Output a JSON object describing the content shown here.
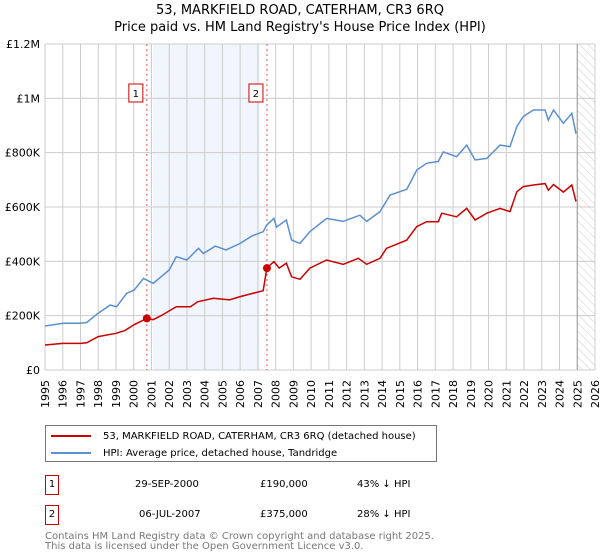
{
  "chart_data": {
    "type": "line",
    "title": "53, MARKFIELD ROAD, CATERHAM, CR3 6RQ",
    "subtitle": "Price paid vs. HM Land Registry's House Price Index (HPI)",
    "xlim": [
      1995,
      2026
    ],
    "ylim": [
      0,
      1200000
    ],
    "x_ticks": [
      "1995",
      "1996",
      "1997",
      "1998",
      "1999",
      "2000",
      "2001",
      "2002",
      "2003",
      "2004",
      "2005",
      "2006",
      "2007",
      "2008",
      "2009",
      "2010",
      "2011",
      "2012",
      "2013",
      "2014",
      "2015",
      "2016",
      "2017",
      "2018",
      "2019",
      "2020",
      "2021",
      "2022",
      "2023",
      "2024",
      "2025",
      "2026"
    ],
    "y_ticks": [
      {
        "v": 0,
        "label": "£0"
      },
      {
        "v": 200000,
        "label": "£200K"
      },
      {
        "v": 400000,
        "label": "£400K"
      },
      {
        "v": 600000,
        "label": "£600K"
      },
      {
        "v": 800000,
        "label": "£800K"
      },
      {
        "v": 1000000,
        "label": "£1M"
      },
      {
        "v": 1200000,
        "label": "£1.2M"
      }
    ],
    "grid": true,
    "shaded_range": [
      2001.1,
      2007.1
    ],
    "forecast_hatch_from": 2025.0,
    "series": [
      {
        "name": "53, MARKFIELD ROAD, CATERHAM, CR3 6RQ (detached house)",
        "color": "#cc0000",
        "x": [
          1995.0,
          1996.0,
          1997.0,
          1997.35,
          1998.0,
          1999.0,
          1999.5,
          2000.0,
          2000.74,
          2001.1,
          2001.6,
          2002.4,
          2003.2,
          2003.6,
          2004.5,
          2005.4,
          2006.0,
          2006.7,
          2007.3,
          2007.5,
          2007.9,
          2008.2,
          2008.6,
          2008.9,
          2009.37,
          2009.93,
          2010.87,
          2011.81,
          2012.66,
          2013.13,
          2013.88,
          2014.25,
          2015.39,
          2015.95,
          2016.51,
          2017.17,
          2017.36,
          2018.2,
          2018.77,
          2019.24,
          2019.9,
          2020.65,
          2021.21,
          2021.59,
          2021.96,
          2022.53,
          2023.19,
          2023.37,
          2023.66,
          2024.22,
          2024.69,
          2024.93
        ],
        "y": [
          92000,
          98000,
          98000,
          100000,
          123000,
          135000,
          145000,
          166000,
          190000,
          185000,
          202000,
          233000,
          233000,
          251000,
          264000,
          258000,
          270000,
          282000,
          292000,
          375000,
          399000,
          375000,
          393000,
          343000,
          334000,
          375000,
          405000,
          389000,
          411000,
          389000,
          411000,
          448000,
          478000,
          528000,
          546000,
          546000,
          577000,
          564000,
          595000,
          552000,
          577000,
          595000,
          583000,
          656000,
          675000,
          681000,
          686000,
          662000,
          683000,
          655000,
          681000,
          620000
        ]
      },
      {
        "name": "HPI: Average price, detached house, Tandridge",
        "color": "#5b8fd0",
        "x": [
          1995.0,
          1996.03,
          1996.97,
          1997.35,
          1998.0,
          1998.67,
          1999.04,
          1999.6,
          2000.02,
          2000.55,
          2001.1,
          2002.0,
          2002.4,
          2003.0,
          2003.65,
          2003.93,
          2004.6,
          2005.2,
          2006.0,
          2006.65,
          2007.3,
          2007.5,
          2007.9,
          2008.05,
          2008.6,
          2008.9,
          2009.37,
          2009.93,
          2010.87,
          2011.81,
          2012.75,
          2013.13,
          2013.88,
          2014.45,
          2015.39,
          2015.95,
          2016.51,
          2017.17,
          2017.45,
          2018.2,
          2018.77,
          2019.24,
          2019.9,
          2020.65,
          2021.21,
          2021.59,
          2021.96,
          2022.53,
          2023.19,
          2023.37,
          2023.66,
          2024.22,
          2024.69,
          2024.93
        ],
        "y": [
          162000,
          172000,
          172000,
          175000,
          209000,
          239000,
          233000,
          282000,
          294000,
          337000,
          319000,
          368000,
          417000,
          405000,
          448000,
          429000,
          456000,
          442000,
          466000,
          493000,
          509000,
          534000,
          558000,
          526000,
          552000,
          478000,
          466000,
          509000,
          558000,
          547000,
          570000,
          547000,
          583000,
          644000,
          665000,
          736000,
          761000,
          768000,
          803000,
          785000,
          828000,
          773000,
          779000,
          828000,
          822000,
          896000,
          933000,
          957000,
          957000,
          920000,
          957000,
          908000,
          945000,
          870000
        ]
      }
    ],
    "sales": [
      {
        "num": "1",
        "x": 2000.74,
        "price": 190000
      },
      {
        "num": "2",
        "x": 2007.51,
        "price": 375000
      }
    ]
  },
  "legend": {
    "property": "53, MARKFIELD ROAD, CATERHAM, CR3 6RQ (detached house)",
    "hpi": "HPI: Average price, detached house, Tandridge"
  },
  "sales_table": [
    {
      "num": "1",
      "date": "29-SEP-2000",
      "price": "£190,000",
      "hpi": "43% ↓ HPI"
    },
    {
      "num": "2",
      "date": "06-JUL-2007",
      "price": "£375,000",
      "hpi": "28% ↓ HPI"
    }
  ],
  "footer": {
    "line1": "Contains HM Land Registry data © Crown copyright and database right 2025.",
    "line2": "This data is licensed under the Open Government Licence v3.0."
  }
}
